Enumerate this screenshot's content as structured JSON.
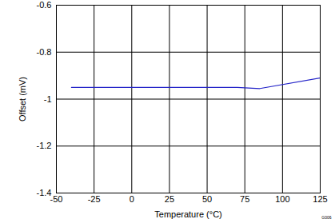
{
  "chart_data": {
    "type": "line",
    "x_label": "Temperature (°C)",
    "y_label": "Offset (mV)",
    "x": [
      -40,
      70,
      85,
      125
    ],
    "series": [
      {
        "name": "Offset",
        "color": "#2323c8",
        "values": [
          -0.95,
          -0.95,
          -0.955,
          -0.91
        ]
      }
    ],
    "xlim": [
      -50,
      125
    ],
    "xticks": [
      -50,
      -25,
      0,
      25,
      50,
      75,
      100,
      125
    ],
    "ylim": [
      -1.4,
      -0.6
    ],
    "yticks": [
      -1.4,
      -1.2,
      -1,
      -0.8,
      -0.6
    ],
    "grid": true,
    "annotations": [
      "G006"
    ]
  }
}
